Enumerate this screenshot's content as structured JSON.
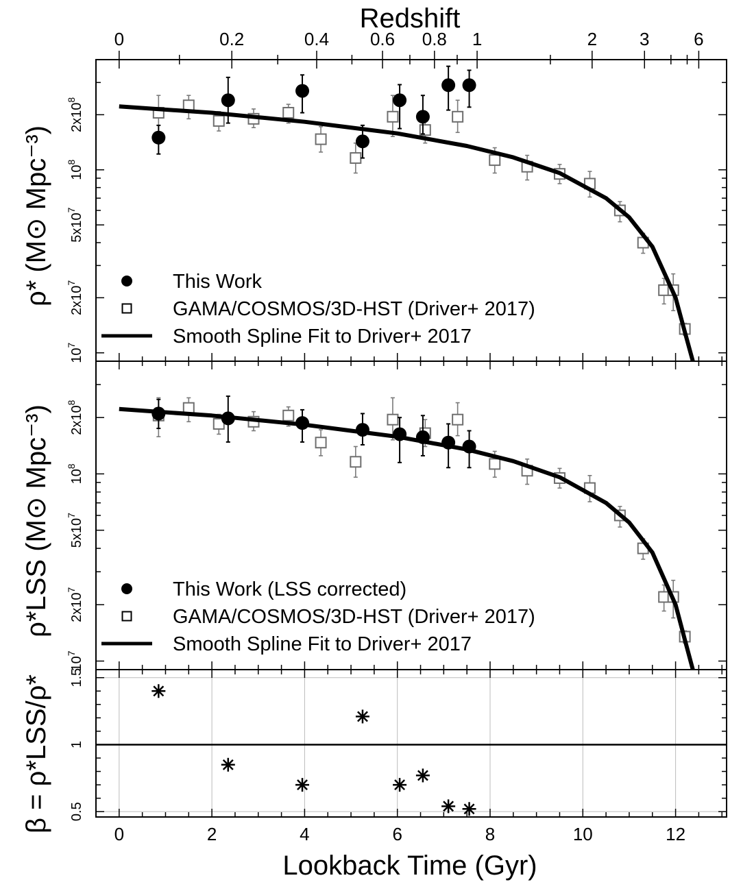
{
  "figure": {
    "top_axis_title": "Redshift",
    "x_axis_title": "Lookback Time (Gyr)",
    "top_panel_ylabel": "ρ* (M⊙ Mpc⁻³)",
    "middle_panel_ylabel": "ρ*LSS (M⊙ Mpc⁻³)",
    "bottom_panel_ylabel": "β = ρ*LSS/ρ*"
  },
  "chart_data": [
    {
      "type": "scatter",
      "panel": "top",
      "xlabel": "Lookback Time (Gyr)",
      "ylabel": "ρ* (M⊙ Mpc⁻³)",
      "xlim": [
        -0.5,
        13.1
      ],
      "ylim": [
        9000000,
        400000000
      ],
      "yscale": "log",
      "top_axis": {
        "label": "Redshift",
        "ticks": [
          {
            "z": "0",
            "t": 0
          },
          {
            "z": "0.2",
            "t": 2.43
          },
          {
            "z": "0.4",
            "t": 4.26
          },
          {
            "z": "0.6",
            "t": 5.68
          },
          {
            "z": "0.8",
            "t": 6.8
          },
          {
            "z": "1",
            "t": 7.72
          },
          {
            "z": "2",
            "t": 10.2
          },
          {
            "z": "3",
            "t": 11.33
          },
          {
            "z": "6",
            "t": 12.5
          }
        ]
      },
      "yticks": [
        {
          "value": 10000000,
          "label": "10⁷"
        },
        {
          "value": 20000000,
          "label": "2x10⁷"
        },
        {
          "value": 50000000,
          "label": "5x10⁷"
        },
        {
          "value": 100000000,
          "label": "10⁸"
        },
        {
          "value": 200000000,
          "label": "2x10⁸"
        }
      ],
      "legend": {
        "placement": "bottom-left",
        "entries": [
          "This Work",
          "GAMA/COSMOS/3D-HST (Driver+ 2017)",
          "Smooth Spline Fit to Driver+ 2017"
        ]
      },
      "series": [
        {
          "name": "This Work",
          "marker": "filled-circle",
          "points": [
            {
              "x": 0.85,
              "y": 150000000,
              "lo": 122000000,
              "hi": 175000000
            },
            {
              "x": 2.35,
              "y": 240000000,
              "lo": 180000000,
              "hi": 320000000
            },
            {
              "x": 3.95,
              "y": 270000000,
              "lo": 205000000,
              "hi": 330000000
            },
            {
              "x": 5.25,
              "y": 143000000,
              "lo": 116000000,
              "hi": 175000000
            },
            {
              "x": 6.05,
              "y": 240000000,
              "lo": 168000000,
              "hi": 292000000
            },
            {
              "x": 6.55,
              "y": 195000000,
              "lo": 157000000,
              "hi": 255000000
            },
            {
              "x": 7.1,
              "y": 290000000,
              "lo": 212000000,
              "hi": 368000000
            },
            {
              "x": 7.55,
              "y": 290000000,
              "lo": 220000000,
              "hi": 350000000
            }
          ]
        },
        {
          "name": "GAMA/COSMOS/3D-HST (Driver+ 2017)",
          "marker": "open-square",
          "points": [
            {
              "x": 0.85,
              "y": 205000000,
              "lo": 158000000,
              "hi": 255000000
            },
            {
              "x": 1.5,
              "y": 225000000,
              "lo": 190000000,
              "hi": 255000000
            },
            {
              "x": 2.15,
              "y": 185000000,
              "lo": 163000000,
              "hi": 208000000
            },
            {
              "x": 2.9,
              "y": 190000000,
              "lo": 170000000,
              "hi": 215000000
            },
            {
              "x": 3.65,
              "y": 205000000,
              "lo": 180000000,
              "hi": 228000000
            },
            {
              "x": 4.35,
              "y": 147000000,
              "lo": 125000000,
              "hi": 172000000
            },
            {
              "x": 5.1,
              "y": 116000000,
              "lo": 96000000,
              "hi": 140000000
            },
            {
              "x": 5.9,
              "y": 195000000,
              "lo": 152000000,
              "hi": 255000000
            },
            {
              "x": 6.6,
              "y": 165000000,
              "lo": 140000000,
              "hi": 195000000
            },
            {
              "x": 7.3,
              "y": 195000000,
              "lo": 160000000,
              "hi": 240000000
            },
            {
              "x": 8.1,
              "y": 113000000,
              "lo": 96000000,
              "hi": 132000000
            },
            {
              "x": 8.8,
              "y": 104000000,
              "lo": 88000000,
              "hi": 120000000
            },
            {
              "x": 9.5,
              "y": 95000000,
              "lo": 84000000,
              "hi": 107000000
            },
            {
              "x": 10.15,
              "y": 84000000,
              "lo": 71000000,
              "hi": 98000000
            },
            {
              "x": 10.8,
              "y": 60000000,
              "lo": 52000000,
              "hi": 67000000
            },
            {
              "x": 11.3,
              "y": 40000000,
              "lo": 35000000,
              "hi": 45000000
            },
            {
              "x": 11.75,
              "y": 22000000,
              "lo": 18500000,
              "hi": 25500000
            },
            {
              "x": 11.95,
              "y": 22000000,
              "lo": 17000000,
              "hi": 27000000
            },
            {
              "x": 12.2,
              "y": 13500000,
              "lo": 12500000,
              "hi": 14500000
            }
          ]
        },
        {
          "name": "Smooth Spline Fit to Driver+ 2017",
          "style": "line",
          "points": [
            {
              "x": 0,
              "y": 222000000
            },
            {
              "x": 2,
              "y": 205000000
            },
            {
              "x": 4,
              "y": 183000000
            },
            {
              "x": 6,
              "y": 158000000
            },
            {
              "x": 7.5,
              "y": 135000000
            },
            {
              "x": 8.5,
              "y": 117000000
            },
            {
              "x": 9.5,
              "y": 96000000
            },
            {
              "x": 10.5,
              "y": 70000000
            },
            {
              "x": 11,
              "y": 55000000
            },
            {
              "x": 11.5,
              "y": 38000000
            },
            {
              "x": 12,
              "y": 20000000
            },
            {
              "x": 12.2,
              "y": 13000000
            },
            {
              "x": 12.4,
              "y": 8500000
            }
          ]
        }
      ]
    },
    {
      "type": "scatter",
      "panel": "middle",
      "xlabel": "Lookback Time (Gyr)",
      "ylabel": "ρ*LSS (M⊙ Mpc⁻³)",
      "xlim": [
        -0.5,
        13.1
      ],
      "ylim": [
        9000000,
        400000000
      ],
      "yscale": "log",
      "yticks": [
        {
          "value": 10000000,
          "label": "10⁷"
        },
        {
          "value": 20000000,
          "label": "2x10⁷"
        },
        {
          "value": 50000000,
          "label": "5x10⁷"
        },
        {
          "value": 100000000,
          "label": "10⁸"
        },
        {
          "value": 200000000,
          "label": "2x10⁸"
        }
      ],
      "legend": {
        "placement": "bottom-left",
        "entries": [
          "This Work (LSS corrected)",
          "GAMA/COSMOS/3D-HST (Driver+ 2017)",
          "Smooth Spline Fit to Driver+ 2017"
        ]
      },
      "series": [
        {
          "name": "This Work (LSS corrected)",
          "marker": "filled-circle",
          "points": [
            {
              "x": 0.85,
              "y": 210000000,
              "lo": 175000000,
              "hi": 250000000
            },
            {
              "x": 2.35,
              "y": 198000000,
              "lo": 148000000,
              "hi": 260000000
            },
            {
              "x": 3.95,
              "y": 187000000,
              "lo": 148000000,
              "hi": 220000000
            },
            {
              "x": 5.25,
              "y": 172000000,
              "lo": 143000000,
              "hi": 210000000
            },
            {
              "x": 6.05,
              "y": 163000000,
              "lo": 115000000,
              "hi": 200000000
            },
            {
              "x": 6.55,
              "y": 157000000,
              "lo": 125000000,
              "hi": 205000000
            },
            {
              "x": 7.1,
              "y": 147000000,
              "lo": 108000000,
              "hi": 185000000
            },
            {
              "x": 7.55,
              "y": 140000000,
              "lo": 108000000,
              "hi": 170000000
            }
          ]
        },
        {
          "name": "GAMA/COSMOS/3D-HST (Driver+ 2017)",
          "marker": "open-square",
          "points": [
            {
              "x": 0.85,
              "y": 205000000,
              "lo": 158000000,
              "hi": 255000000
            },
            {
              "x": 1.5,
              "y": 225000000,
              "lo": 190000000,
              "hi": 255000000
            },
            {
              "x": 2.15,
              "y": 185000000,
              "lo": 163000000,
              "hi": 208000000
            },
            {
              "x": 2.9,
              "y": 190000000,
              "lo": 170000000,
              "hi": 215000000
            },
            {
              "x": 3.65,
              "y": 205000000,
              "lo": 180000000,
              "hi": 228000000
            },
            {
              "x": 4.35,
              "y": 147000000,
              "lo": 125000000,
              "hi": 172000000
            },
            {
              "x": 5.1,
              "y": 116000000,
              "lo": 96000000,
              "hi": 140000000
            },
            {
              "x": 5.9,
              "y": 195000000,
              "lo": 152000000,
              "hi": 255000000
            },
            {
              "x": 6.6,
              "y": 165000000,
              "lo": 140000000,
              "hi": 195000000
            },
            {
              "x": 7.3,
              "y": 195000000,
              "lo": 160000000,
              "hi": 240000000
            },
            {
              "x": 8.1,
              "y": 113000000,
              "lo": 96000000,
              "hi": 132000000
            },
            {
              "x": 8.8,
              "y": 104000000,
              "lo": 88000000,
              "hi": 120000000
            },
            {
              "x": 9.5,
              "y": 95000000,
              "lo": 84000000,
              "hi": 107000000
            },
            {
              "x": 10.15,
              "y": 84000000,
              "lo": 71000000,
              "hi": 98000000
            },
            {
              "x": 10.8,
              "y": 60000000,
              "lo": 52000000,
              "hi": 67000000
            },
            {
              "x": 11.3,
              "y": 40000000,
              "lo": 35000000,
              "hi": 45000000
            },
            {
              "x": 11.75,
              "y": 22000000,
              "lo": 18500000,
              "hi": 25500000
            },
            {
              "x": 11.95,
              "y": 22000000,
              "lo": 17000000,
              "hi": 27000000
            },
            {
              "x": 12.2,
              "y": 13500000,
              "lo": 12500000,
              "hi": 14500000
            }
          ]
        },
        {
          "name": "Smooth Spline Fit to Driver+ 2017",
          "style": "line",
          "points": [
            {
              "x": 0,
              "y": 222000000
            },
            {
              "x": 2,
              "y": 205000000
            },
            {
              "x": 4,
              "y": 183000000
            },
            {
              "x": 6,
              "y": 158000000
            },
            {
              "x": 7.5,
              "y": 135000000
            },
            {
              "x": 8.5,
              "y": 117000000
            },
            {
              "x": 9.5,
              "y": 96000000
            },
            {
              "x": 10.5,
              "y": 70000000
            },
            {
              "x": 11,
              "y": 55000000
            },
            {
              "x": 11.5,
              "y": 38000000
            },
            {
              "x": 12,
              "y": 20000000
            },
            {
              "x": 12.2,
              "y": 13000000
            },
            {
              "x": 12.4,
              "y": 8500000
            }
          ]
        }
      ]
    },
    {
      "type": "scatter",
      "panel": "bottom",
      "xlabel": "Lookback Time (Gyr)",
      "ylabel": "β = ρ*LSS/ρ*",
      "xlim": [
        -0.5,
        13.1
      ],
      "ylim": [
        0.46,
        1.56
      ],
      "grid": true,
      "xticks": [
        0,
        2,
        4,
        6,
        8,
        10,
        12
      ],
      "yticks": [
        {
          "value": 0.5,
          "label": "0.5"
        },
        {
          "value": 1,
          "label": "1"
        },
        {
          "value": 1.5,
          "label": "1.5"
        }
      ],
      "reference_line": {
        "y": 1
      },
      "series": [
        {
          "name": "β",
          "marker": "asterisk",
          "points": [
            {
              "x": 0.85,
              "y": 1.4
            },
            {
              "x": 2.35,
              "y": 0.85
            },
            {
              "x": 3.95,
              "y": 0.7
            },
            {
              "x": 5.25,
              "y": 1.21
            },
            {
              "x": 6.05,
              "y": 0.7
            },
            {
              "x": 6.55,
              "y": 0.77
            },
            {
              "x": 7.1,
              "y": 0.54
            },
            {
              "x": 7.55,
              "y": 0.52
            }
          ]
        }
      ]
    }
  ]
}
